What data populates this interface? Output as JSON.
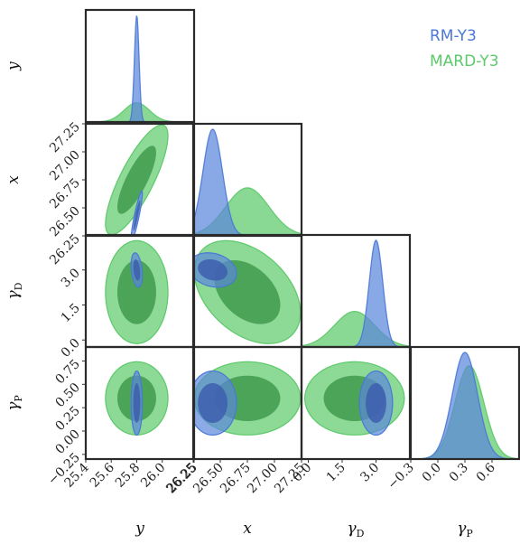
{
  "chart_data": {
    "type": "corner",
    "parameters": [
      {
        "key": "y",
        "label": "y",
        "sub": "",
        "range": [
          25.4,
          26.25
        ],
        "ticks": [
          25.4,
          25.6,
          25.8,
          26.0,
          26.25
        ],
        "tick_labels": [
          "25.4",
          "25.6",
          "25.8",
          "26.0",
          "26.25"
        ]
      },
      {
        "key": "x",
        "label": "x",
        "sub": "",
        "range": [
          26.25,
          27.25
        ],
        "ticks": [
          26.25,
          26.5,
          26.75,
          27.0,
          27.25
        ],
        "tick_labels": [
          "26.25",
          "26.50",
          "26.75",
          "27.00",
          "27.25"
        ]
      },
      {
        "key": "gD",
        "label": "γ",
        "sub": "D",
        "range": [
          -0.3,
          4.5
        ],
        "ticks": [
          0.0,
          1.5,
          3.0
        ],
        "tick_labels": [
          "0.0",
          "1.5",
          "3.0"
        ]
      },
      {
        "key": "gP",
        "label": "γ",
        "sub": "P",
        "range": [
          -0.3,
          0.9
        ],
        "ticks": [
          -0.3,
          0.0,
          0.3,
          0.6
        ],
        "tick_labels": [
          "−0.3",
          "0.0",
          "0.3",
          "0.6"
        ]
      }
    ],
    "row_ticks": {
      "x": {
        "ticks": [
          26.25,
          26.5,
          26.75,
          27.0,
          27.25
        ],
        "labels": [
          "26.25",
          "26.50",
          "26.75",
          "27.00",
          "27.25"
        ]
      },
      "gD": {
        "ticks": [
          0.0,
          1.5,
          3.0
        ],
        "labels": [
          "0.0",
          "1.5",
          "3.0"
        ]
      },
      "gP": {
        "ticks": [
          -0.25,
          0.0,
          0.25,
          0.5,
          0.75
        ],
        "labels": [
          "−0.25",
          "0.00",
          "0.25",
          "0.50",
          "0.75"
        ]
      }
    },
    "series": [
      {
        "name": "RM-Y3",
        "color": "#4a78d6",
        "fill": "#5b86dc",
        "mean": {
          "y": 25.8,
          "x": 26.43,
          "gD": 3.0,
          "gP": 0.3
        },
        "sd": {
          "y": 0.018,
          "x": 0.09,
          "gD": 0.3,
          "gP": 0.14
        },
        "corr": {
          "y|x": 0.9,
          "y|gD": -0.3,
          "x|gD": -0.2
        }
      },
      {
        "name": "MARD-Y3",
        "color": "#5cc96a",
        "fill": "#5cc96a",
        "mean": {
          "y": 25.8,
          "x": 26.75,
          "gD": 2.05,
          "gP": 0.35
        },
        "sd": {
          "y": 0.1,
          "x": 0.2,
          "gD": 0.9,
          "gP": 0.16
        },
        "corr": {
          "y|x": 0.8,
          "x|gD": -0.4
        }
      }
    ],
    "legend": {
      "placement": "top-right"
    }
  }
}
